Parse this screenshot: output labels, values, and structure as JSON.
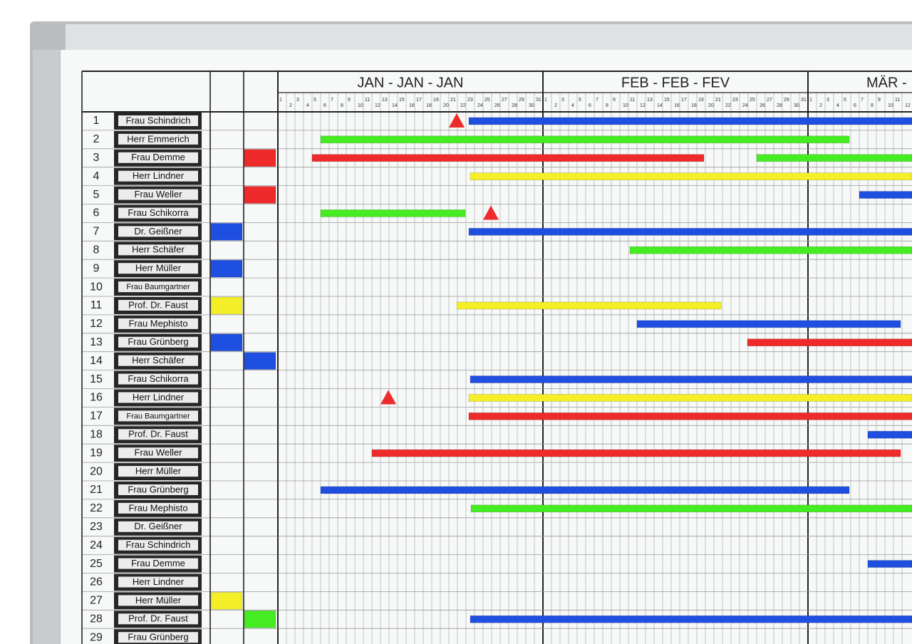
{
  "months": [
    {
      "title": "JAN - JAN - JAN",
      "days": [
        1,
        2,
        3,
        4,
        5,
        6,
        7,
        8,
        9,
        10,
        11,
        12,
        13,
        14,
        15,
        16,
        17,
        18,
        19,
        20,
        21,
        22,
        23,
        24,
        25,
        26,
        27,
        28,
        29,
        30,
        31
      ]
    },
    {
      "title": "FEB - FEB - FEV",
      "days": [
        1,
        2,
        3,
        4,
        5,
        6,
        7,
        8,
        9,
        10,
        11,
        12,
        13,
        14,
        15,
        16,
        17,
        18,
        19,
        20,
        21,
        22,
        23,
        24,
        25,
        26,
        27,
        28,
        29,
        30,
        31
      ]
    },
    {
      "title": "MÄR -",
      "days": [
        1,
        2,
        3,
        4,
        5,
        6,
        7,
        8,
        9,
        10,
        11,
        12
      ]
    }
  ],
  "rows": [
    {
      "number": 1,
      "name": "Frau Schindrich"
    },
    {
      "number": 2,
      "name": "Herr Emmerich"
    },
    {
      "number": 3,
      "name": "Frau Demme"
    },
    {
      "number": 4,
      "name": "Herr Lindner"
    },
    {
      "number": 5,
      "name": "Frau Weller"
    },
    {
      "number": 6,
      "name": "Frau Schikorra"
    },
    {
      "number": 7,
      "name": "Dr. Geißner"
    },
    {
      "number": 8,
      "name": "Herr Schäfer"
    },
    {
      "number": 9,
      "name": "Herr Müller"
    },
    {
      "number": 10,
      "name": "Frau Baumgartner"
    },
    {
      "number": 11,
      "name": "Prof. Dr. Faust"
    },
    {
      "number": 12,
      "name": "Frau Mephisto"
    },
    {
      "number": 13,
      "name": "Frau Grünberg"
    },
    {
      "number": 14,
      "name": "Herr Schäfer"
    },
    {
      "number": 15,
      "name": "Frau Schikorra"
    },
    {
      "number": 16,
      "name": "Herr Lindner"
    },
    {
      "number": 17,
      "name": "Frau Baumgartner"
    },
    {
      "number": 18,
      "name": "Prof. Dr. Faust"
    },
    {
      "number": 19,
      "name": "Frau Weller"
    },
    {
      "number": 20,
      "name": "Herr Müller"
    },
    {
      "number": 21,
      "name": "Frau Grünberg"
    },
    {
      "number": 22,
      "name": "Frau Mephisto"
    },
    {
      "number": 23,
      "name": "Dr. Geißner"
    },
    {
      "number": 24,
      "name": "Frau Schindrich"
    },
    {
      "number": 25,
      "name": "Frau Demme"
    },
    {
      "number": 26,
      "name": "Herr Lindner"
    },
    {
      "number": 27,
      "name": "Herr Müller"
    },
    {
      "number": 28,
      "name": "Prof. Dr. Faust"
    },
    {
      "number": 29,
      "name": "Frau Grünberg"
    }
  ]
}
